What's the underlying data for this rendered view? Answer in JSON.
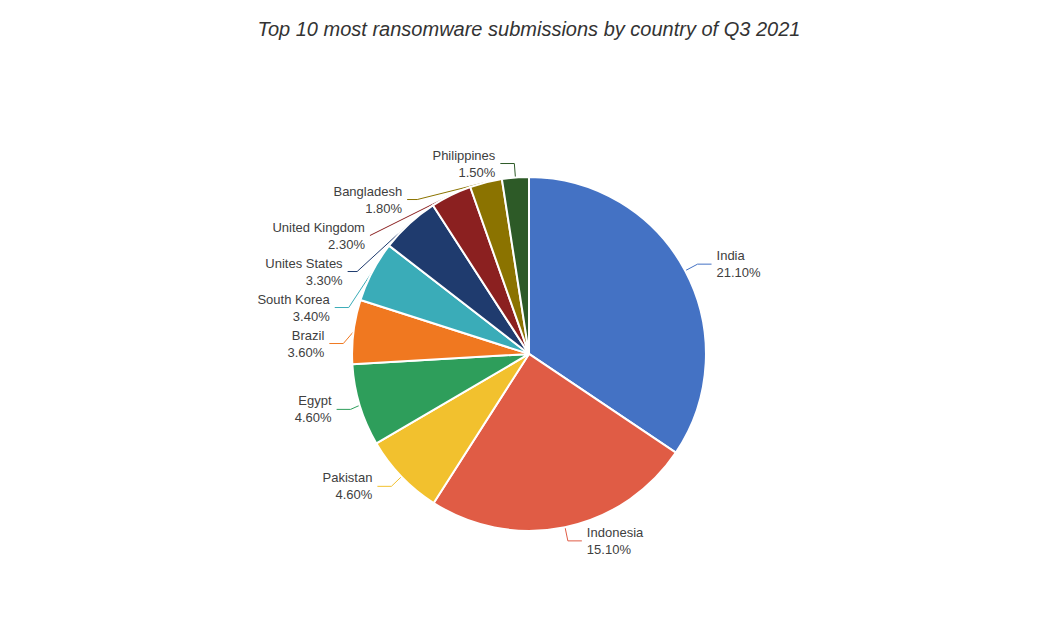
{
  "chart_data": {
    "type": "pie",
    "title": "Top 10 most ransomware submissions by country of Q3 2021",
    "categories": [
      "India",
      "Indonesia",
      "Pakistan",
      "Egypt",
      "Brazil",
      "South Korea",
      "Unites States",
      "United Kingdom",
      "Bangladesh",
      "Philippines"
    ],
    "values": [
      21.1,
      15.1,
      4.6,
      4.6,
      3.6,
      3.4,
      3.3,
      2.3,
      1.8,
      1.5
    ],
    "value_labels": [
      "21.10%",
      "15.10%",
      "4.60%",
      "4.60%",
      "3.60%",
      "3.40%",
      "3.30%",
      "2.30%",
      "1.80%",
      "1.50%"
    ],
    "colors": [
      "#4472C4",
      "#E05C45",
      "#F2C12E",
      "#2E9E5B",
      "#F07820",
      "#3AACB8",
      "#1F3B6E",
      "#8B2020",
      "#8B7300",
      "#2D5A27"
    ],
    "data_labels": true
  }
}
